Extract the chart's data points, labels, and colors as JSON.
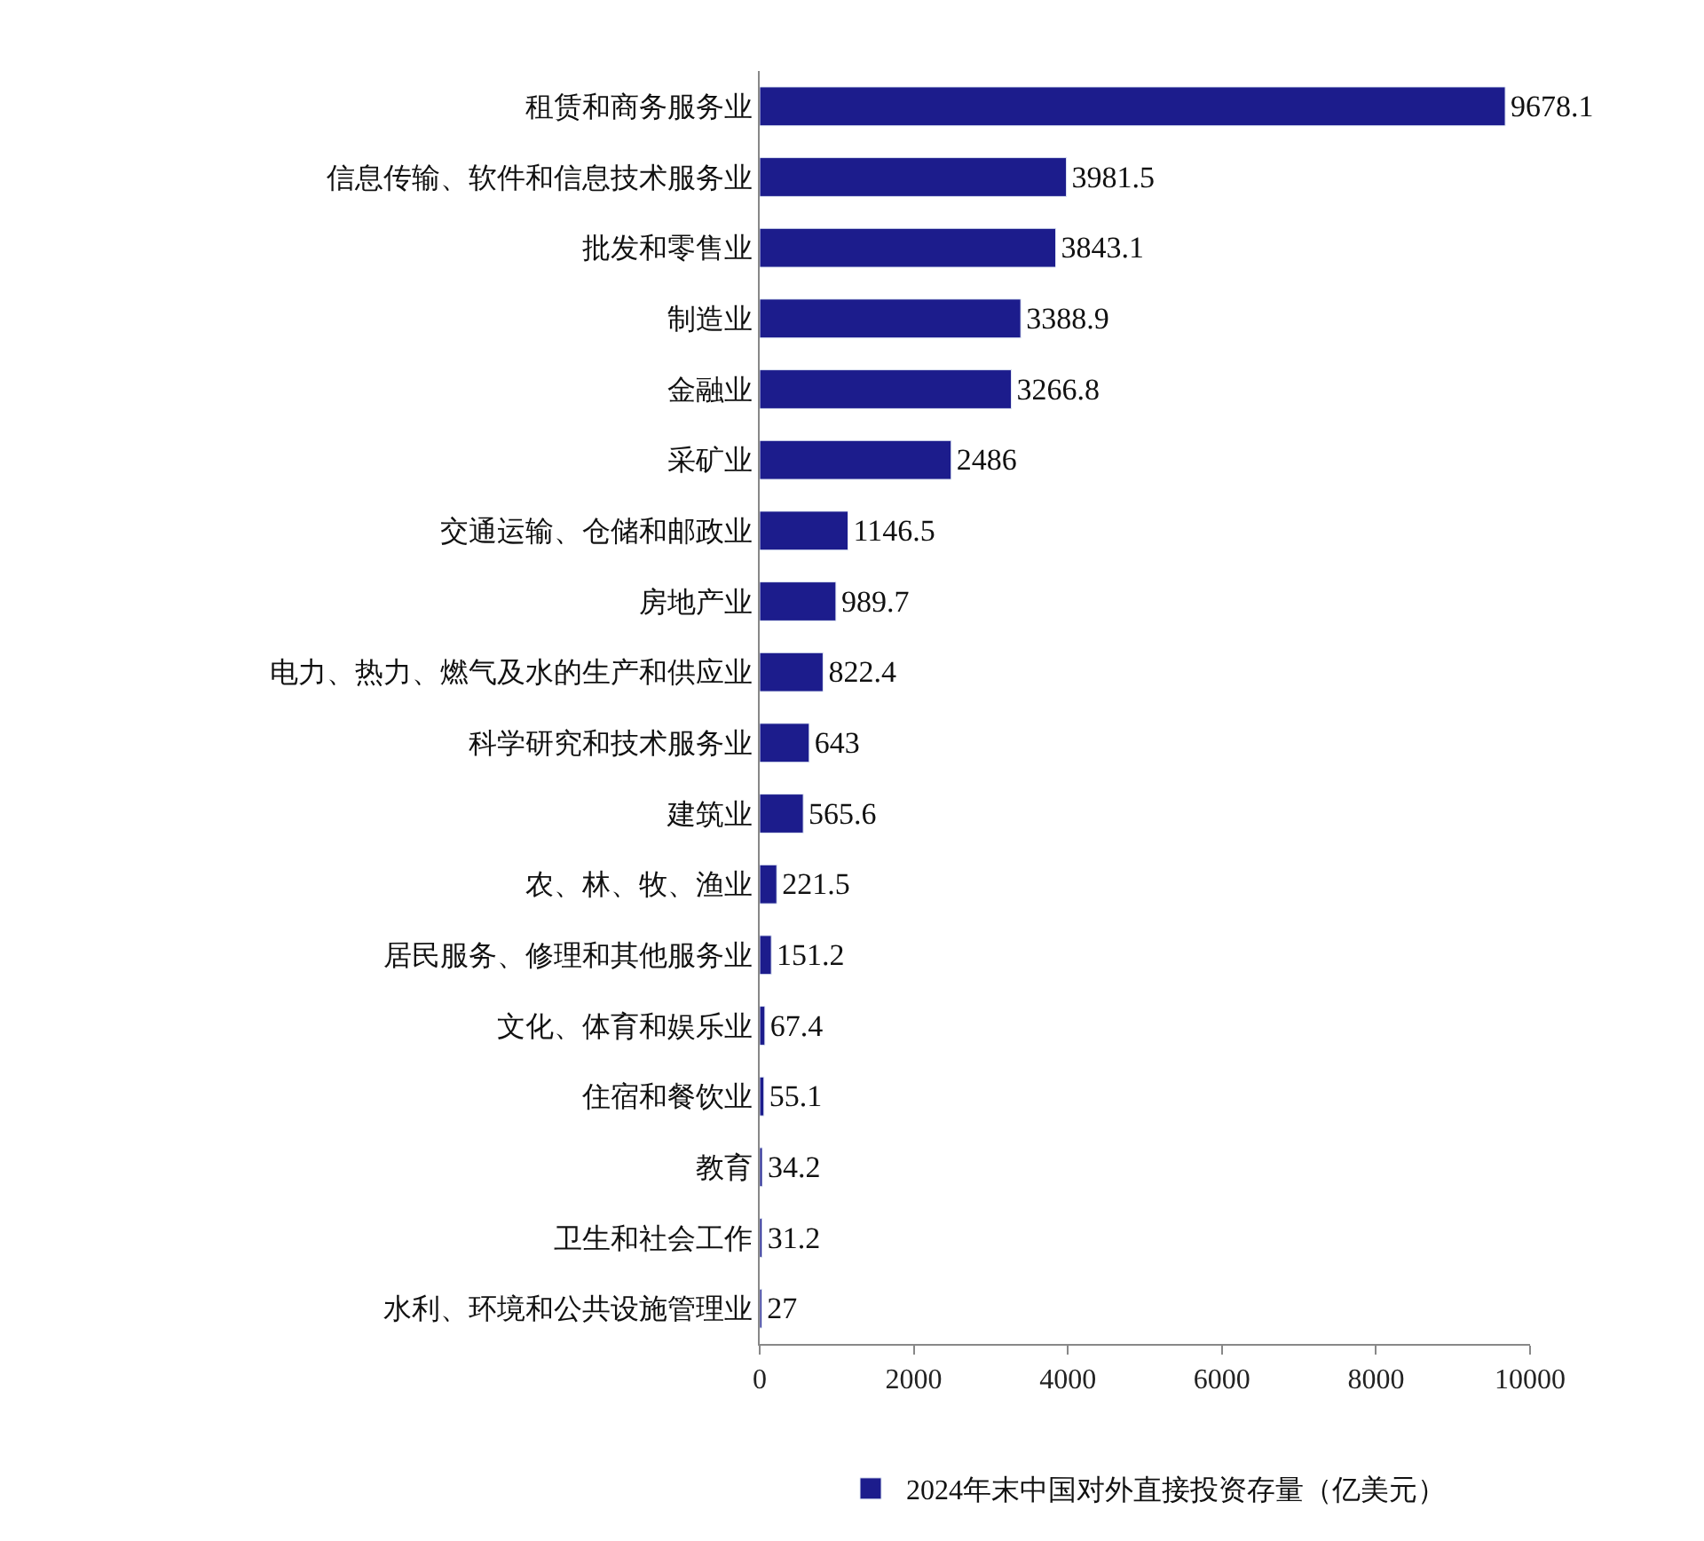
{
  "chart_data": {
    "type": "bar",
    "orientation": "horizontal",
    "categories": [
      "租赁和商务服务业",
      "信息传输、软件和信息技术服务业",
      "批发和零售业",
      "制造业",
      "金融业",
      "采矿业",
      "交通运输、仓储和邮政业",
      "房地产业",
      "电力、热力、燃气及水的生产和供应业",
      "科学研究和技术服务业",
      "建筑业",
      "农、林、牧、渔业",
      "居民服务、修理和其他服务业",
      "文化、体育和娱乐业",
      "住宿和餐饮业",
      "教育",
      "卫生和社会工作",
      "水利、环境和公共设施管理业"
    ],
    "series": [
      {
        "name": "2024年末中国对外直接投资存量（亿美元）",
        "color": "#1c1c8c",
        "values": [
          9678.1,
          3981.5,
          3843.1,
          3388.9,
          3266.8,
          2486,
          1146.5,
          989.7,
          822.4,
          643,
          565.6,
          221.5,
          151.2,
          67.4,
          55.1,
          34.2,
          31.2,
          27
        ]
      }
    ],
    "xlim": [
      0,
      10000
    ],
    "xticks": [
      0,
      2000,
      4000,
      6000,
      8000,
      10000
    ],
    "data_labels": true,
    "legend": "bottom"
  }
}
